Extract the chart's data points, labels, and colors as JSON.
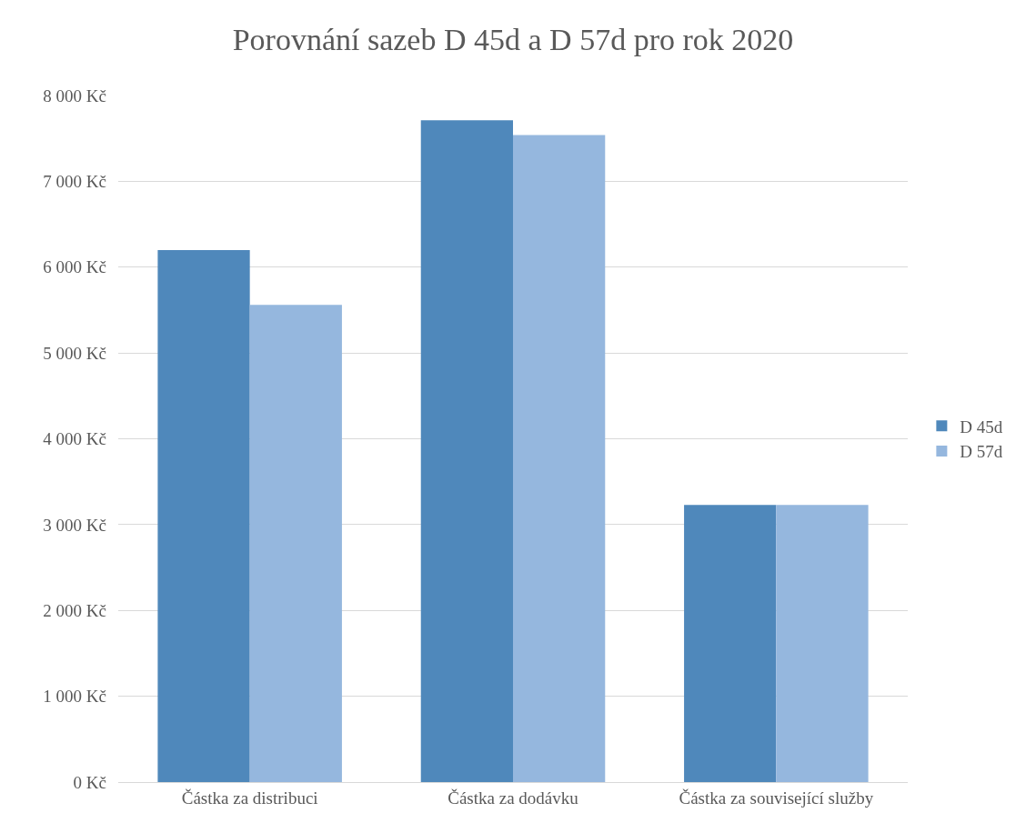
{
  "chart_data": {
    "type": "bar",
    "title": "Porovnání sazeb D 45d a D 57d pro rok 2020",
    "categories": [
      "Částka za distribuci",
      "Částka za dodávku",
      "Částka za související služby"
    ],
    "series": [
      {
        "name": "D 45d",
        "color": "#4f88bb",
        "values": [
          6200,
          7710,
          3230
        ]
      },
      {
        "name": "D 57d",
        "color": "#95b7de",
        "values": [
          5560,
          7540,
          3230
        ]
      }
    ],
    "ylim": [
      0,
      8000
    ],
    "yticks": [
      {
        "value": 0,
        "label": "0 Kč"
      },
      {
        "value": 1000,
        "label": "1 000 Kč"
      },
      {
        "value": 2000,
        "label": "2 000 Kč"
      },
      {
        "value": 3000,
        "label": "3 000 Kč"
      },
      {
        "value": 4000,
        "label": "4 000 Kč"
      },
      {
        "value": 5000,
        "label": "5 000 Kč"
      },
      {
        "value": 6000,
        "label": "6 000 Kč"
      },
      {
        "value": 7000,
        "label": "7 000 Kč"
      },
      {
        "value": 8000,
        "label": "8 000 Kč"
      }
    ],
    "grid": "y",
    "legend": "right"
  }
}
